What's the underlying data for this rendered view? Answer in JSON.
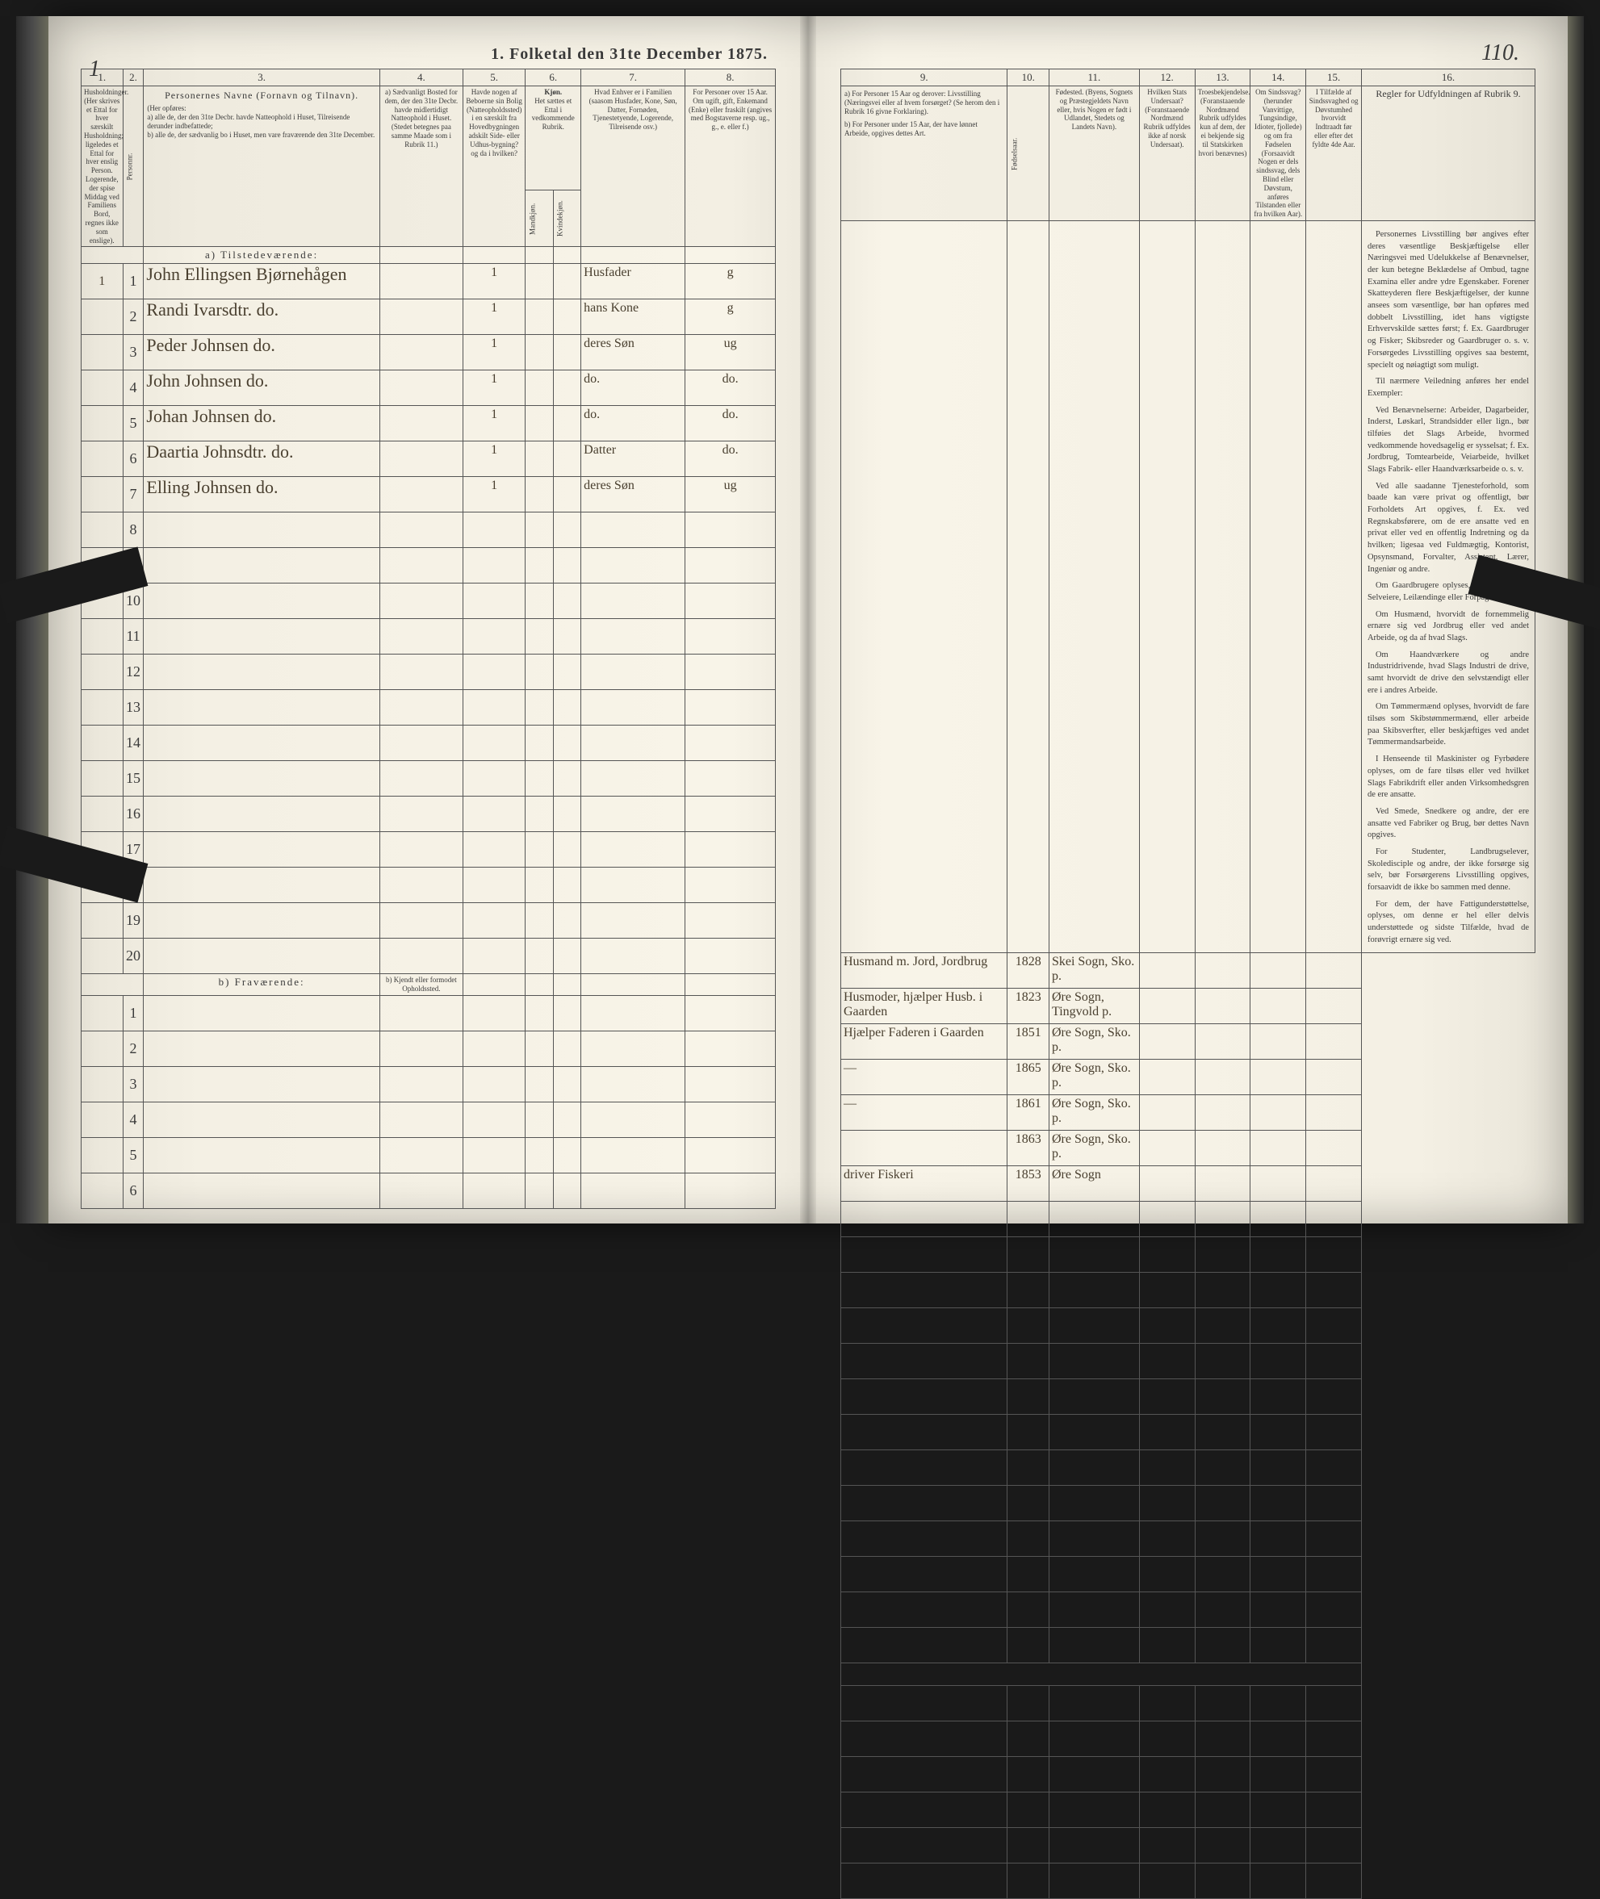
{
  "title": "1.  Folketal den 31te December 1875.",
  "page_number_left": "1",
  "page_number_right": "110.",
  "left_columns": {
    "c1": "1.",
    "c2": "2.",
    "c3": "3.",
    "c4": "4.",
    "c5": "5.",
    "c6": "6.",
    "c7": "7.",
    "c8": "8."
  },
  "right_columns": {
    "c9": "9.",
    "c10": "10.",
    "c11": "11.",
    "c12": "12.",
    "c13": "13.",
    "c14": "14.",
    "c15": "15.",
    "c16": "16."
  },
  "left_headers": {
    "h1": "Husholdninger. (Her skrives et Ettal for hver særskilt Husholdning; ligeledes et Ettal for hver enslig Person. Logerende, der spise Middag ved Familiens Bord, regnes ikke som enslige).",
    "h2": "Personnr.",
    "h3_title": "Personernes Navne (Fornavn og Tilnavn).",
    "h3_body": "(Her opføres:\na) alle de, der den 31te Decbr. havde Natteophold i Huset, Tilreisende derunder indbefattede;\nb) alle de, der sædvanlig bo i Huset, men vare fraværende den 31te December.",
    "h4": "a) Sædvanligt Bosted for dem, der den 31te Decbr. havde midlertidigt Natteophold i Huset. (Stedet betegnes paa samme Maade som i Rubrik 11.)",
    "h5": "Havde nogen af Beboerne sin Bolig (Natteopholdssted) i en særskilt fra Hovedbygningen adskilt Side- eller Udhus-bygning? og da i hvilken?",
    "h6_title": "Kjøn.",
    "h6a": "Het sættes et Ettal i vedkommende Rubrik.",
    "h6m": "Mandkjøn.",
    "h6k": "Kvindekjøn.",
    "h7": "Hvad Enhver er i Familien (saasom Husfader, Kone, Søn, Datter, Fornøden, Tjenestetyende, Logerende, Tilreisende osv.)",
    "h8": "For Personer over 15 Aar. Om ugift, gift, Enkemand (Enke) eller fraskilt (angives med Bogstaverne resp. ug., g., e. eller f.)"
  },
  "right_headers": {
    "h9a": "a) For Personer 15 Aar og derover: Livsstilling (Næringsvei eller af hvem forsørget? (Se herom den i Rubrik 16 givne Forklaring).",
    "h9b": "b) For Personer under 15 Aar, der have lønnet Arbeide, opgives dettes Art.",
    "h10": "Fødselsaar.",
    "h11": "Fødested. (Byens, Sognets og Præstegjeldets Navn eller, hvis Nogen er født i Udlandet, Stedets og Landets Navn).",
    "h12": "Hvilken Stats Undersaat? (Foranstaaende Nordmænd Rubrik udfyldes ikke af norsk Undersaat).",
    "h13": "Troesbekjendelse. (Foranstaaende Nordmænd Rubrik udfyldes kun af dem, der ei bekjende sig til Statskirken hvori benævnes)",
    "h14": "Om Sindssvag? (herunder Vanvittige, Tungsindige, Idioter, fjollede) og om fra Fødselen (Forsaavidt Nogen er dels sindssvag, dels Blind eller Døvstum, anføres Tilstanden eller fra hvilken Aar).",
    "h15": "I Tilfælde af Sindssvaghed og Døvstumhed hvorvidt Indtraadt før eller efter det fyldte 4de Aar.",
    "h16": "Regler for Udfyldningen af Rubrik 9."
  },
  "section_a": "a) Tilstedeværende:",
  "section_b": "b) Fraværende:",
  "section_b_right": "b) Kjendt eller formodet Opholdssted.",
  "rows": [
    {
      "n": "1",
      "hh": "1",
      "name": "John Ellingsen Bjørnehågen",
      "c5": "1",
      "c6m": "",
      "c6k": "",
      "fam": "Husfader",
      "civ": "g",
      "occ": "Husmand m. Jord, Jordbrug",
      "year": "1828",
      "place": "Skei Sogn, Sko. p."
    },
    {
      "n": "2",
      "hh": "",
      "name": "Randi Ivarsdtr.        do.",
      "c5": "1",
      "c6m": "",
      "c6k": "",
      "fam": "hans Kone",
      "civ": "g",
      "occ": "Husmoder, hjælper Husb. i Gaarden",
      "year": "1823",
      "place": "Øre Sogn, Tingvold p."
    },
    {
      "n": "3",
      "hh": "",
      "name": "Peder Johnsen        do.",
      "c5": "1",
      "c6m": "",
      "c6k": "",
      "fam": "deres Søn",
      "civ": "ug",
      "occ": "Hjælper Faderen i Gaarden",
      "year": "1851",
      "place": "Øre Sogn, Sko. p."
    },
    {
      "n": "4",
      "hh": "",
      "name": "John Johnsen        do.",
      "c5": "1",
      "c6m": "",
      "c6k": "",
      "fam": "do.",
      "civ": "do.",
      "occ": "—",
      "year": "1865",
      "place": "Øre Sogn, Sko. p."
    },
    {
      "n": "5",
      "hh": "",
      "name": "Johan Johnsen        do.",
      "c5": "1",
      "c6m": "",
      "c6k": "",
      "fam": "do.",
      "civ": "do.",
      "occ": "—",
      "year": "1861",
      "place": "Øre Sogn, Sko. p."
    },
    {
      "n": "6",
      "hh": "",
      "name": "Daartia Johnsdtr.    do.",
      "c5": "1",
      "c6m": "",
      "c6k": "",
      "fam": "Datter",
      "civ": "do.",
      "occ": "",
      "year": "1863",
      "place": "Øre Sogn, Sko. p."
    },
    {
      "n": "7",
      "hh": "",
      "name": "Elling Johnsen        do.",
      "c5": "1",
      "c6m": "",
      "c6k": "",
      "fam": "deres Søn",
      "civ": "ug",
      "occ": "driver Fiskeri",
      "year": "1853",
      "place": "Øre Sogn"
    }
  ],
  "empty_rows_a": [
    "8",
    "9",
    "10",
    "11",
    "12",
    "13",
    "14",
    "15",
    "16",
    "17",
    "18",
    "19",
    "20"
  ],
  "empty_rows_b": [
    "1",
    "2",
    "3",
    "4",
    "5",
    "6"
  ],
  "rubrik_paragraphs": [
    "Personernes Livsstilling bør angives efter deres væsentlige Beskjæftigelse eller Næringsvei med Udelukkelse af Benævnelser, der kun betegne Beklædelse af Ombud, tagne Examina eller andre ydre Egenskaber. Forener Skatteyderen flere Beskjæftigelser, der kunne ansees som væsentlige, bør han opføres med dobbelt Livsstilling, idet hans vigtigste Erhvervskilde sættes først; f. Ex. Gaardbruger og Fisker; Skibsreder og Gaardbruger o. s. v. Forsørgedes Livsstilling opgives saa bestemt, specielt og nøiagtigt som muligt.",
    "Til nærmere Veiledning anføres her endel Exempler:",
    "Ved Benævnelserne: Arbeider, Dagarbeider, Inderst, Løskarl, Strandsidder eller lign., bør tilføies det Slags Arbeide, hvormed vedkommende hovedsagelig er sysselsat; f. Ex. Jordbrug, Tomtearbeide, Veiarbeide, hvilket Slags Fabrik- eller Haandværksarbeide o. s. v.",
    "Ved alle saadanne Tjenesteforhold, som baade kan være privat og offentligt, bør Forholdets Art opgives, f. Ex. ved Regnskabsførere, om de ere ansatte ved en privat eller ved en offentlig Indretning og da hvilken; ligesaa ved Fuldmægtig, Kontorist, Opsynsmand, Forvalter, Assistent, Lærer, Ingeniør og andre.",
    "Om Gaardbrugere oplyses, hvorvidt de ere Selveiere, Leilændinge eller Forpagtere.",
    "Om Husmænd, hvorvidt de fornemmelig ernære sig ved Jordbrug eller ved andet Arbeide, og da af hvad Slags.",
    "Om Haandværkere og andre Industridrivende, hvad Slags Industri de drive, samt hvorvidt de drive den selvstændigt eller ere i andres Arbeide.",
    "Om Tømmermænd oplyses, hvorvidt de fare tilsøs som Skibstømmermænd, eller arbeide paa Skibsverfter, eller beskjæftiges ved andet Tømmermandsarbeide.",
    "I Henseende til Maskinister og Fyrbødere oplyses, om de fare tilsøs eller ved hvilket Slags Fabrikdrift eller anden Virksomhedsgren de ere ansatte.",
    "Ved Smede, Snedkere og andre, der ere ansatte ved Fabriker og Brug, bør dettes Navn opgives.",
    "For Studenter, Landbrugselever, Skoledisciple og andre, der ikke forsørge sig selv, bør Forsørgerens Livsstilling opgives, forsaavidt de ikke bo sammen med denne.",
    "For dem, der have Fattigunderstøttelse, oplyses, om denne er hel eller delvis understøttede og sidste Tilfælde, hvad de forøvrigt ernære sig ved."
  ],
  "colors": {
    "paper": "#f4f0e4",
    "ink": "#3a3a3a",
    "handwriting": "#4a4030",
    "border": "#555555"
  }
}
